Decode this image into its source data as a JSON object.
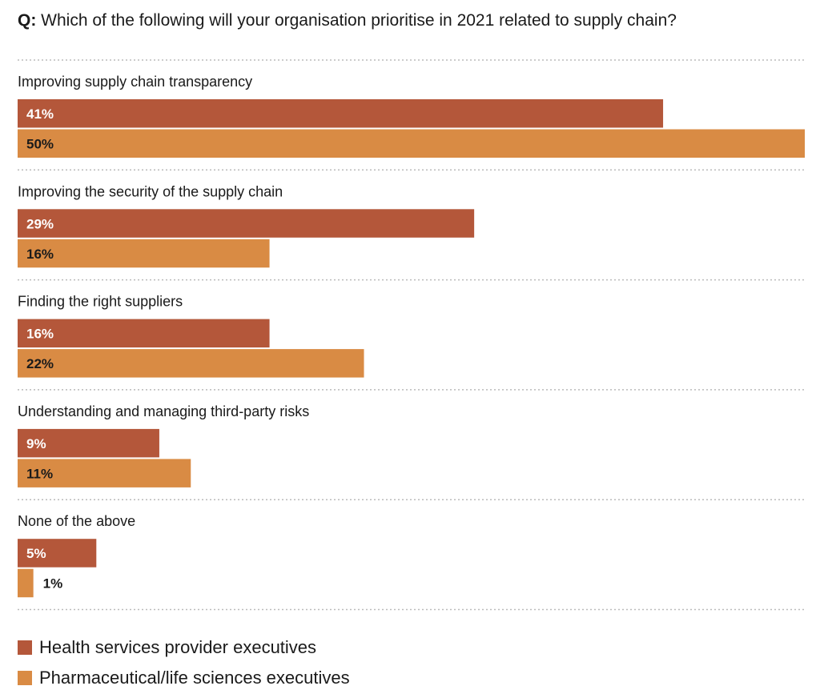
{
  "title": {
    "prefix": "Q:",
    "text": "Which of the following will your organisation prioritise in 2021 related to supply chain?"
  },
  "chart_data": {
    "type": "bar",
    "orientation": "horizontal",
    "title": "Q: Which of the following will your organisation prioritise in 2021 related to supply chain?",
    "categories": [
      "Improving supply chain transparency",
      "Improving the security of the supply chain",
      "Finding the right suppliers",
      "Understanding and managing third-party risks",
      "None of the above"
    ],
    "series": [
      {
        "name": "Health services provider executives",
        "color": "#b4573a",
        "values": [
          41,
          29,
          16,
          9,
          5
        ]
      },
      {
        "name": "Pharmaceutical/life sciences executives",
        "color": "#d98b44",
        "values": [
          50,
          16,
          22,
          11,
          1
        ]
      }
    ],
    "unit": "%",
    "xlim": [
      0,
      50
    ],
    "grid": false,
    "legend": "bottom-left"
  }
}
